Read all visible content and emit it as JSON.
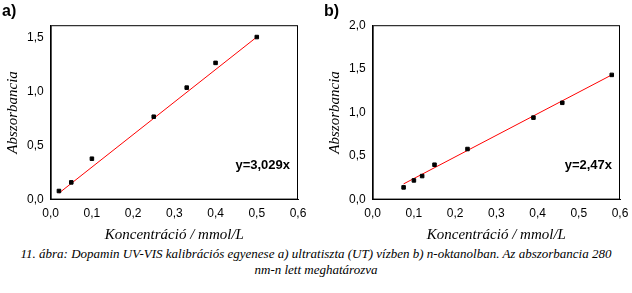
{
  "chart_data": [
    {
      "type": "scatter",
      "title": "a)",
      "x_label": "Koncentráció / mmol/L",
      "y_label": "Abszorbancia",
      "annotations": [
        "y=3,029x"
      ],
      "xlim": [
        0,
        0.6
      ],
      "xticks": [
        {
          "value": 0,
          "label": "0,0"
        },
        {
          "value": 0.1,
          "label": "0,1"
        },
        {
          "value": 0.2,
          "label": "0,2"
        },
        {
          "value": 0.3,
          "label": "0,3"
        },
        {
          "value": 0.4,
          "label": "0,4"
        },
        {
          "value": 0.5,
          "label": "0,5"
        },
        {
          "value": 0.6,
          "label": "0,6"
        }
      ],
      "ylim": [
        0,
        1.62
      ],
      "yticks": [
        {
          "value": 0,
          "label": "0,0"
        },
        {
          "value": 0.5,
          "label": "0,5"
        },
        {
          "value": 1,
          "label": "1,0"
        },
        {
          "value": 1.5,
          "label": "1,5"
        }
      ],
      "grid": false,
      "series": [
        {
          "type": "scatter",
          "marker": "square",
          "color": "#000000",
          "x": [
            0.02,
            0.05,
            0.1,
            0.25,
            0.33,
            0.4,
            0.5
          ],
          "values": [
            0.08,
            0.16,
            0.38,
            0.77,
            1.04,
            1.27,
            1.51
          ]
        },
        {
          "type": "line",
          "line_style": "solid",
          "color": "#ff0000",
          "x": [
            0.02,
            0.5
          ],
          "values": [
            0.06,
            1.51
          ]
        }
      ]
    },
    {
      "type": "scatter",
      "title": "b)",
      "x_label": "Koncentráció / mmol/L",
      "y_label": "Abszorbancia",
      "annotations": [
        "y=2,47x"
      ],
      "xlim": [
        0,
        0.6
      ],
      "xticks": [
        {
          "value": 0,
          "label": "0,0"
        },
        {
          "value": 0.1,
          "label": "0,1"
        },
        {
          "value": 0.2,
          "label": "0,2"
        },
        {
          "value": 0.3,
          "label": "0,3"
        },
        {
          "value": 0.4,
          "label": "0,4"
        },
        {
          "value": 0.5,
          "label": "0,5"
        },
        {
          "value": 0.6,
          "label": "0,6"
        }
      ],
      "ylim": [
        0,
        2
      ],
      "yticks": [
        {
          "value": 0,
          "label": "0,0"
        },
        {
          "value": 0.5,
          "label": "0,5"
        },
        {
          "value": 1,
          "label": "1,0"
        },
        {
          "value": 1.5,
          "label": "1,5"
        },
        {
          "value": 2,
          "label": "2,0"
        }
      ],
      "grid": false,
      "series": [
        {
          "type": "scatter",
          "marker": "square",
          "color": "#000000",
          "x": [
            0.075,
            0.1,
            0.12,
            0.15,
            0.23,
            0.39,
            0.46,
            0.58
          ],
          "values": [
            0.14,
            0.22,
            0.27,
            0.4,
            0.58,
            0.94,
            1.11,
            1.43
          ]
        },
        {
          "type": "line",
          "line_style": "solid",
          "color": "#ff0000",
          "x": [
            0.075,
            0.58
          ],
          "values": [
            0.18,
            1.43
          ]
        }
      ]
    }
  ],
  "caption": "11. ábra: Dopamin UV-VIS kalibrációs egyenese a) ultratiszta (UT) vízben b) n-oktanolban. Az abszorbancia 280 nm-n lett meghatározva"
}
